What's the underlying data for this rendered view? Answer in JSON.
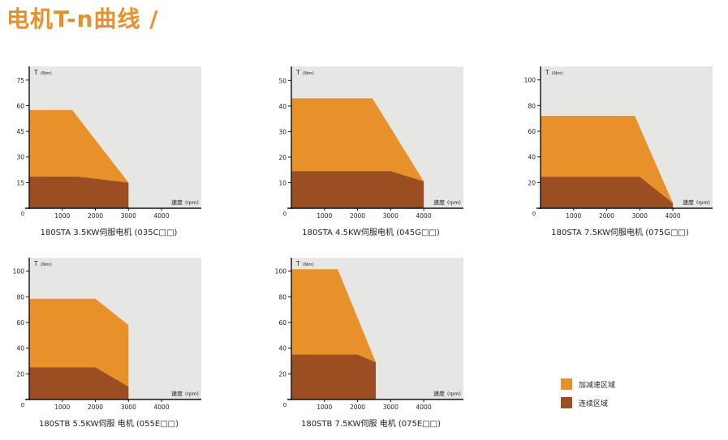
{
  "title": "电机T-n曲线 /",
  "colors": {
    "accel_area": "#E8902A",
    "continuous_area": "#9A4E22",
    "plot_background": "#E6E6E5",
    "axis": "#111111",
    "title": "#E8902A"
  },
  "legend": {
    "items": [
      {
        "label": "加减速区域",
        "color": "#E8902A"
      },
      {
        "label": "连续区域",
        "color": "#9A4E22"
      }
    ]
  },
  "chart_data": [
    {
      "type": "area",
      "caption": "180STA 3.5KW伺服电机 (035C□□)",
      "ylabel": "T",
      "ylabel_unit": "(Nm)",
      "xlabel": "速度",
      "xlabel_unit": "(rpm)",
      "origin_label": "0",
      "xlim": [
        0,
        5200
      ],
      "ylim": [
        0,
        83
      ],
      "xticks": [
        1000,
        2000,
        3000,
        4000
      ],
      "yticks": [
        15,
        30,
        45,
        60,
        75
      ],
      "series": [
        {
          "name": "加减速区域",
          "x": [
            0,
            1300,
            3000,
            3000
          ],
          "y": [
            57.5,
            57.5,
            15,
            0
          ]
        },
        {
          "name": "连续区域",
          "x": [
            0,
            1450,
            3000,
            3000
          ],
          "y": [
            18.5,
            18.5,
            15,
            0
          ]
        }
      ]
    },
    {
      "type": "area",
      "caption": "180STA 4.5KW伺服电机 (045G□□)",
      "ylabel": "T",
      "ylabel_unit": "(Nm)",
      "xlabel": "速度",
      "xlabel_unit": "(rpm)",
      "origin_label": "0",
      "xlim": [
        0,
        5200
      ],
      "ylim": [
        0,
        55.5
      ],
      "xticks": [
        1000,
        2000,
        3000,
        4000
      ],
      "yticks": [
        10,
        20,
        30,
        40,
        50
      ],
      "series": [
        {
          "name": "加减速区域",
          "x": [
            0,
            2450,
            4000,
            4000
          ],
          "y": [
            43,
            43,
            10.5,
            0
          ]
        },
        {
          "name": "连续区域",
          "x": [
            0,
            3000,
            4000,
            4000
          ],
          "y": [
            14.5,
            14.5,
            10.5,
            0
          ]
        }
      ]
    },
    {
      "type": "area",
      "caption": "180STA 7.5KW伺服电机 (075G□□)",
      "ylabel": "T",
      "ylabel_unit": "(Nm)",
      "xlabel": "速度",
      "xlabel_unit": "(rpm)",
      "origin_label": "0",
      "xlim": [
        0,
        5200
      ],
      "ylim": [
        0,
        110.5
      ],
      "xticks": [
        1000,
        2000,
        3000,
        4000
      ],
      "yticks": [
        20,
        40,
        60,
        80,
        100
      ],
      "series": [
        {
          "name": "加减速区域",
          "x": [
            0,
            2850,
            4000,
            4000
          ],
          "y": [
            72,
            72,
            4,
            0
          ]
        },
        {
          "name": "连续区域",
          "x": [
            0,
            3000,
            4000,
            4000
          ],
          "y": [
            24.5,
            24.5,
            4,
            0
          ]
        }
      ]
    },
    {
      "type": "area",
      "caption": "180STB 5.5KW伺服 电机 (055E□□)",
      "ylabel": "T",
      "ylabel_unit": "(Nm)",
      "xlabel": "速度",
      "xlabel_unit": "(rpm)",
      "origin_label": "0",
      "xlim": [
        0,
        5200
      ],
      "ylim": [
        0,
        110.5
      ],
      "xticks": [
        1000,
        2000,
        3000,
        4000
      ],
      "yticks": [
        20,
        40,
        60,
        80,
        100
      ],
      "series": [
        {
          "name": "加减速区域",
          "x": [
            0,
            2000,
            3000,
            3000
          ],
          "y": [
            78.5,
            78.5,
            58,
            0
          ]
        },
        {
          "name": "连续区域",
          "x": [
            0,
            2000,
            3000,
            3000
          ],
          "y": [
            25,
            25,
            10,
            0
          ]
        }
      ]
    },
    {
      "type": "area",
      "caption": "180STB 7.5KW伺服 电机 (075E□□)",
      "ylabel": "T",
      "ylabel_unit": "(Nm)",
      "xlabel": "速度",
      "xlabel_unit": "(rpm)",
      "origin_label": "0",
      "xlim": [
        0,
        5200
      ],
      "ylim": [
        0,
        110.5
      ],
      "xticks": [
        1000,
        2000,
        3000,
        4000
      ],
      "yticks": [
        20,
        40,
        60,
        80,
        100
      ],
      "series": [
        {
          "name": "加减速区域",
          "x": [
            0,
            1400,
            2550,
            2550
          ],
          "y": [
            101.5,
            101.5,
            29,
            0
          ]
        },
        {
          "name": "连续区域",
          "x": [
            0,
            2000,
            2550,
            2550
          ],
          "y": [
            35,
            35,
            29,
            0
          ]
        }
      ]
    }
  ]
}
